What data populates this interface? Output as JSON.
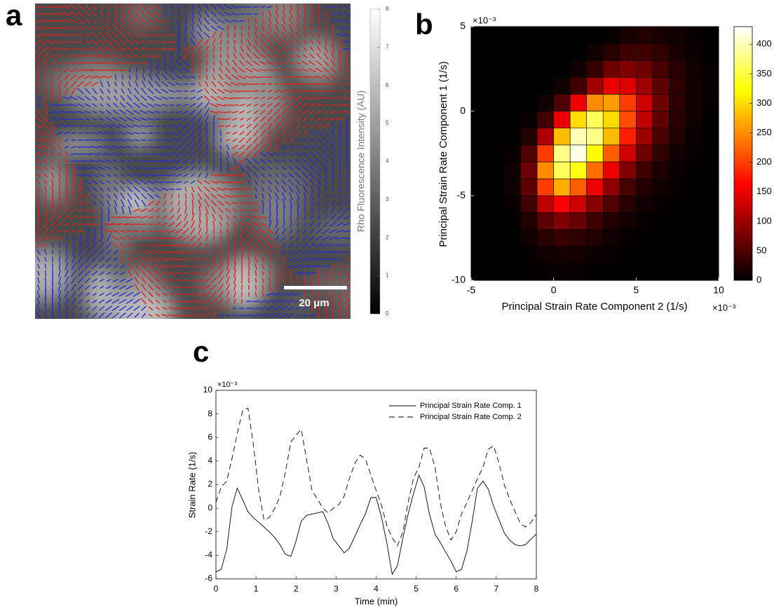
{
  "chart_data": [
    {
      "type": "image",
      "panel_label": "a",
      "colorbar_label": "Rho Fluorescence Intensity (AU)",
      "clim": [
        0,
        8
      ],
      "cticks": [
        0,
        1,
        2,
        3,
        4,
        5,
        6,
        7,
        8
      ],
      "scale_bar_label": "20 μm"
    },
    {
      "type": "heatmap",
      "panel_label": "b",
      "xlabel": "Principal Strain Rate Component 2 (1/s)",
      "ylabel": "Principal Strain Rate Component 1 (1/s)",
      "x_exponent": "×10⁻³",
      "y_exponent": "×10⁻³",
      "x_bins": [
        -5,
        -4,
        -3,
        -2,
        -1,
        0,
        1,
        2,
        3,
        4,
        5,
        6,
        7,
        8,
        9,
        10
      ],
      "y_bins": [
        5,
        4,
        3,
        2,
        1,
        0,
        -1,
        -2,
        -3,
        -4,
        -5,
        -6,
        -7,
        -8,
        -9,
        -10
      ],
      "values": [
        [
          0,
          0,
          0,
          0,
          0,
          0,
          0,
          0,
          5,
          15,
          20,
          15,
          10,
          5,
          2
        ],
        [
          0,
          0,
          0,
          0,
          0,
          0,
          0,
          10,
          25,
          40,
          40,
          30,
          15,
          8,
          3
        ],
        [
          0,
          0,
          0,
          0,
          0,
          0,
          10,
          35,
          70,
          80,
          70,
          45,
          25,
          10,
          4
        ],
        [
          0,
          0,
          0,
          0,
          0,
          10,
          40,
          100,
          150,
          140,
          100,
          60,
          30,
          12,
          5
        ],
        [
          0,
          0,
          0,
          0,
          10,
          50,
          150,
          250,
          260,
          200,
          130,
          70,
          30,
          12,
          4
        ],
        [
          0,
          0,
          0,
          5,
          40,
          150,
          300,
          360,
          300,
          210,
          120,
          60,
          25,
          10,
          3
        ],
        [
          0,
          0,
          2,
          20,
          110,
          280,
          400,
          380,
          280,
          180,
          100,
          45,
          20,
          8,
          2
        ],
        [
          0,
          0,
          5,
          50,
          200,
          380,
          420,
          320,
          220,
          130,
          70,
          30,
          12,
          5,
          1
        ],
        [
          0,
          1,
          10,
          70,
          250,
          360,
          330,
          230,
          150,
          80,
          40,
          18,
          8,
          3,
          1
        ],
        [
          0,
          1,
          10,
          60,
          200,
          270,
          220,
          150,
          90,
          45,
          20,
          10,
          4,
          2,
          0
        ],
        [
          0,
          0,
          5,
          40,
          120,
          160,
          130,
          85,
          50,
          25,
          10,
          5,
          2,
          1,
          0
        ],
        [
          0,
          0,
          3,
          20,
          60,
          80,
          65,
          40,
          20,
          10,
          5,
          2,
          1,
          0,
          0
        ],
        [
          0,
          0,
          1,
          10,
          25,
          35,
          30,
          20,
          10,
          5,
          2,
          1,
          0,
          0,
          0
        ],
        [
          0,
          0,
          0,
          4,
          10,
          15,
          12,
          8,
          4,
          2,
          1,
          0,
          0,
          0,
          0
        ],
        [
          0,
          0,
          0,
          1,
          4,
          5,
          5,
          3,
          2,
          1,
          0,
          0,
          0,
          0,
          0
        ]
      ],
      "xlim": [
        -5,
        10
      ],
      "ylim": [
        -10,
        5
      ],
      "xticks": [
        -5,
        0,
        5,
        10
      ],
      "yticks": [
        -10,
        -5,
        0,
        5
      ],
      "clim": [
        0,
        430
      ],
      "cticks": [
        0,
        50,
        100,
        150,
        200,
        250,
        300,
        350,
        400
      ],
      "colormap": "hot"
    },
    {
      "type": "line",
      "panel_label": "c",
      "xlabel": "Time (min)",
      "ylabel": "Strain Rate (1/s)",
      "y_exponent": "×10⁻³",
      "x": [
        0,
        0.13,
        0.27,
        0.4,
        0.53,
        0.67,
        0.8,
        0.93,
        1.07,
        1.2,
        1.33,
        1.47,
        1.6,
        1.73,
        1.87,
        2,
        2.13,
        2.27,
        2.4,
        2.53,
        2.67,
        2.8,
        2.93,
        3.07,
        3.2,
        3.33,
        3.47,
        3.6,
        3.73,
        3.87,
        4,
        4.13,
        4.27,
        4.4,
        4.53,
        4.67,
        4.8,
        4.93,
        5.07,
        5.2,
        5.33,
        5.47,
        5.6,
        5.73,
        5.87,
        6,
        6.13,
        6.27,
        6.4,
        6.53,
        6.67,
        6.8,
        6.93,
        7.07,
        7.2,
        7.33,
        7.47,
        7.6,
        7.73,
        7.87,
        8
      ],
      "series": [
        {
          "name": "Principal Strain Rate Comp. 1",
          "color": "#000000",
          "dash": "solid",
          "values": [
            -5.4,
            -5.2,
            -3.5,
            0.1,
            1.7,
            0.7,
            -0.3,
            -0.8,
            -1.2,
            -1.6,
            -2,
            -2.5,
            -3.1,
            -3.9,
            -4.1,
            -2.8,
            -1.1,
            -0.6,
            -0.5,
            -0.4,
            -0.3,
            -1.3,
            -2.6,
            -3.2,
            -3.8,
            -3.4,
            -2.4,
            -1.4,
            -0.5,
            0.9,
            0.9,
            -0.7,
            -3.0,
            -5.6,
            -4.9,
            -2.5,
            -0.5,
            1.2,
            2.8,
            1.8,
            -0.5,
            -2.2,
            -2.9,
            -3.7,
            -4.5,
            -5.4,
            -5.2,
            -3.6,
            -1.1,
            1.7,
            2.3,
            1.6,
            0.2,
            -1,
            -2.1,
            -2.7,
            -3.1,
            -3.2,
            -3.1,
            -2.6,
            -2.2
          ]
        },
        {
          "name": "Principal Strain Rate Comp. 2",
          "color": "#000000",
          "dash": "dashed",
          "values": [
            0.5,
            1.8,
            2.3,
            4.2,
            6.3,
            8.3,
            8.5,
            5.5,
            1.5,
            -1,
            -0.8,
            0,
            1,
            3,
            5.6,
            6.2,
            6.7,
            4,
            1.5,
            0.8,
            0,
            -0.4,
            0,
            0.3,
            1,
            2.5,
            3.8,
            4.5,
            4.2,
            2.8,
            1.5,
            0.3,
            -1.5,
            -2.5,
            -3.2,
            -2,
            0.5,
            2.5,
            3.5,
            5.1,
            5.1,
            3.5,
            0.5,
            -1.5,
            -2.7,
            -2,
            -0.5,
            0.5,
            1.5,
            2.5,
            3.5,
            5,
            5.3,
            3.8,
            2,
            0.8,
            -0.3,
            -1.3,
            -1.6,
            -1.2,
            -0.5
          ]
        }
      ],
      "xlim": [
        0,
        8
      ],
      "ylim": [
        -6,
        10
      ],
      "xticks": [
        0,
        1,
        2,
        3,
        4,
        5,
        6,
        7,
        8
      ],
      "yticks": [
        -6,
        -4,
        -2,
        0,
        2,
        4,
        6,
        8,
        10
      ],
      "legend": "northeast"
    }
  ]
}
